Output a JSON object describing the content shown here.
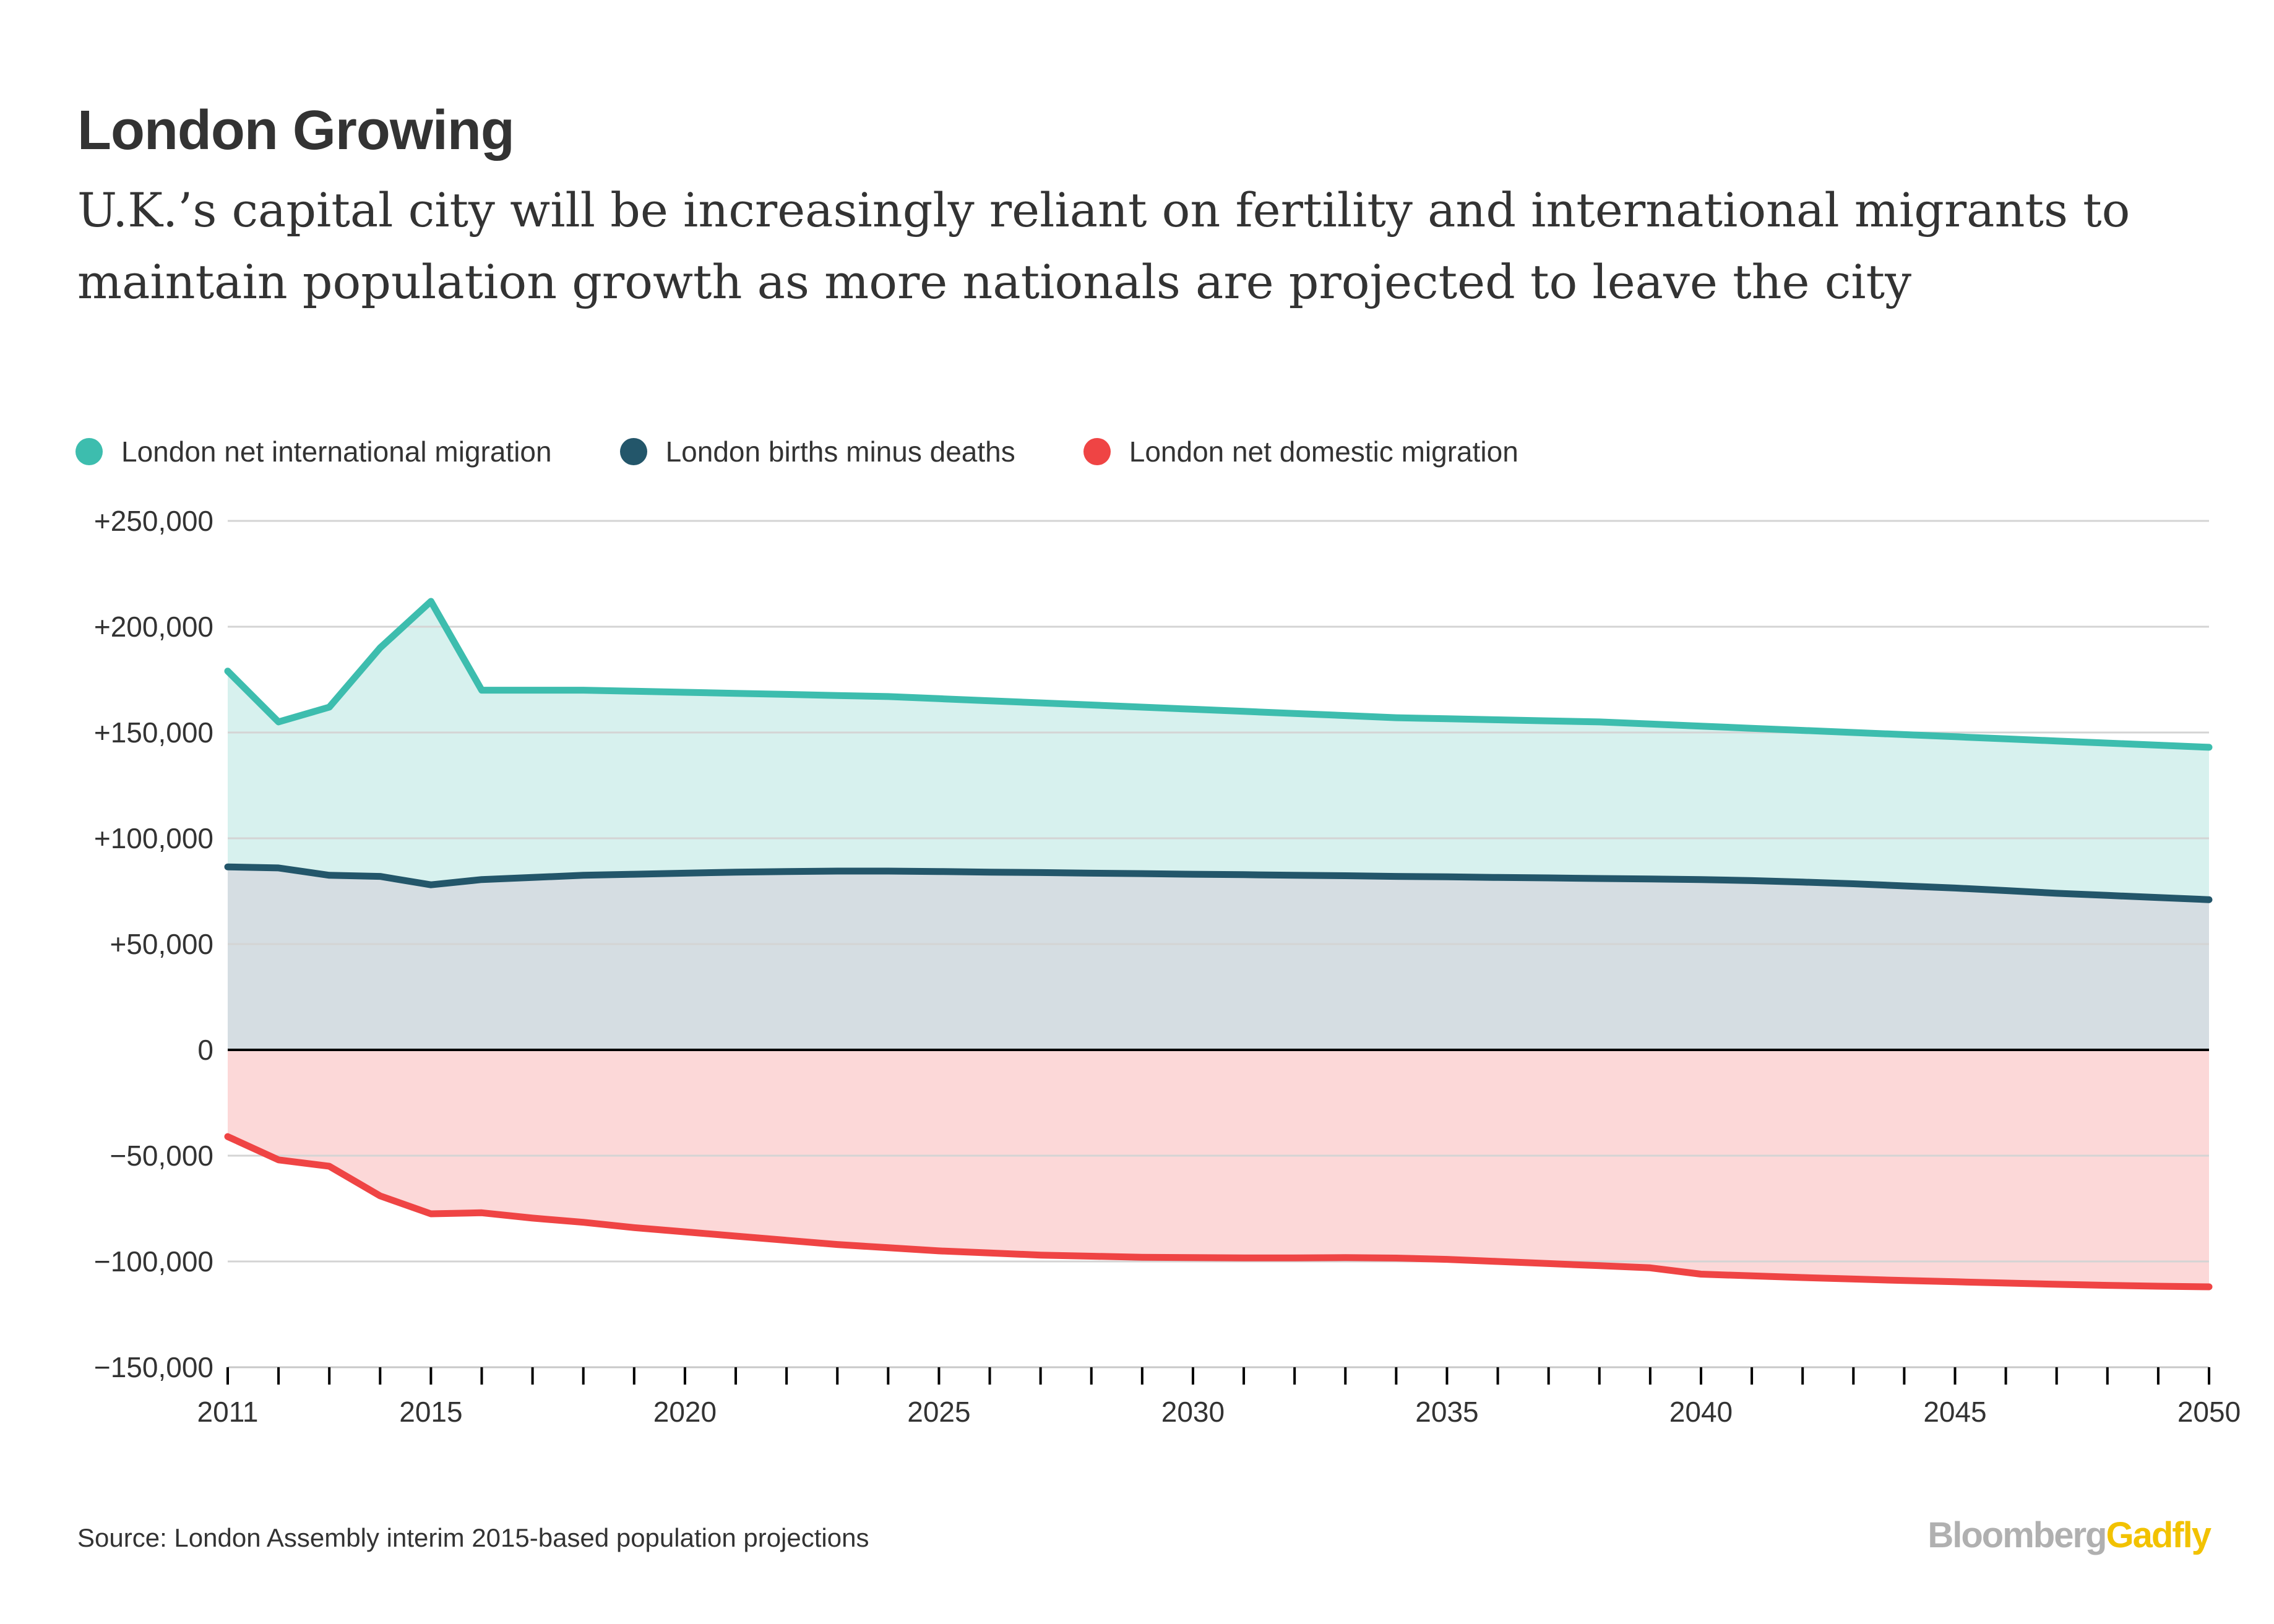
{
  "header": {
    "title": "London Growing",
    "subtitle": "U.K.’s capital city will be increasingly reliant on fertility and international migrants to maintain population growth as more nationals are projected to leave the city"
  },
  "footer": {
    "source": "Source: London Assembly interim 2015-based population projections",
    "brand_primary": "Bloomberg",
    "brand_secondary": "Gadfly"
  },
  "colors": {
    "international": "#3dbdae",
    "international_fill": "#d7f1ee",
    "births": "#23566a",
    "births_fill": "#d5dde2",
    "domestic": "#ef4444",
    "domestic_fill": "#fcd8d8",
    "gridline": "#d4d4d4",
    "axis": "#000000",
    "text": "#333333",
    "brand_grey": "#b0b0b0",
    "brand_yellow": "#f2c200"
  },
  "chart_data": {
    "type": "area",
    "x_labels": [
      "2011",
      "2015",
      "2020",
      "2025",
      "2030",
      "2035",
      "2040",
      "2045",
      "2050"
    ],
    "y_ticks": [
      {
        "value": 250000,
        "label": "+250,000"
      },
      {
        "value": 200000,
        "label": "+200,000"
      },
      {
        "value": 150000,
        "label": "+150,000"
      },
      {
        "value": 100000,
        "label": "+100,000"
      },
      {
        "value": 50000,
        "label": "+50,000"
      },
      {
        "value": 0,
        "label": "0"
      },
      {
        "value": -50000,
        "label": "−50,000"
      },
      {
        "value": -100000,
        "label": "−100,000"
      },
      {
        "value": -150000,
        "label": "−150,000"
      }
    ],
    "xlim": [
      2011,
      2050
    ],
    "ylim": [
      -150000,
      250000
    ],
    "grid": true,
    "legend_position": "top-left",
    "x": [
      2011,
      2012,
      2013,
      2014,
      2015,
      2016,
      2017,
      2018,
      2019,
      2020,
      2021,
      2022,
      2023,
      2024,
      2025,
      2026,
      2027,
      2028,
      2029,
      2030,
      2031,
      2032,
      2033,
      2034,
      2035,
      2036,
      2037,
      2038,
      2039,
      2040,
      2041,
      2042,
      2043,
      2044,
      2045,
      2046,
      2047,
      2048,
      2049,
      2050
    ],
    "series": [
      {
        "name": "London net international migration",
        "values": [
          179000,
          155000,
          162000,
          190000,
          212000,
          170000,
          170000,
          170000,
          169500,
          169000,
          168500,
          168000,
          167500,
          167000,
          166000,
          165000,
          164000,
          163000,
          162000,
          161000,
          160000,
          159000,
          158000,
          157000,
          156500,
          156000,
          155500,
          155000,
          154000,
          153000,
          152000,
          151000,
          150000,
          149000,
          148000,
          147000,
          146000,
          145000,
          144000,
          143000
        ]
      },
      {
        "name": "London births minus deaths",
        "values": [
          86500,
          86000,
          82500,
          82000,
          78000,
          80500,
          81500,
          82500,
          83000,
          83500,
          84000,
          84300,
          84500,
          84500,
          84300,
          84000,
          83800,
          83500,
          83300,
          83000,
          82800,
          82500,
          82300,
          82000,
          81800,
          81500,
          81300,
          81000,
          80800,
          80500,
          80000,
          79300,
          78500,
          77500,
          76500,
          75300,
          74000,
          73000,
          72000,
          71000
        ]
      },
      {
        "name": "London net domestic migration",
        "values": [
          -41000,
          -52000,
          -55000,
          -69000,
          -77500,
          -77000,
          -79500,
          -81500,
          -84000,
          -86000,
          -88000,
          -90000,
          -92000,
          -93500,
          -95000,
          -96000,
          -97000,
          -97500,
          -98000,
          -98200,
          -98300,
          -98300,
          -98200,
          -98400,
          -99000,
          -100000,
          -101000,
          -102000,
          -103000,
          -106000,
          -106800,
          -107600,
          -108300,
          -109000,
          -109600,
          -110200,
          -110800,
          -111300,
          -111700,
          -112000
        ]
      }
    ]
  }
}
